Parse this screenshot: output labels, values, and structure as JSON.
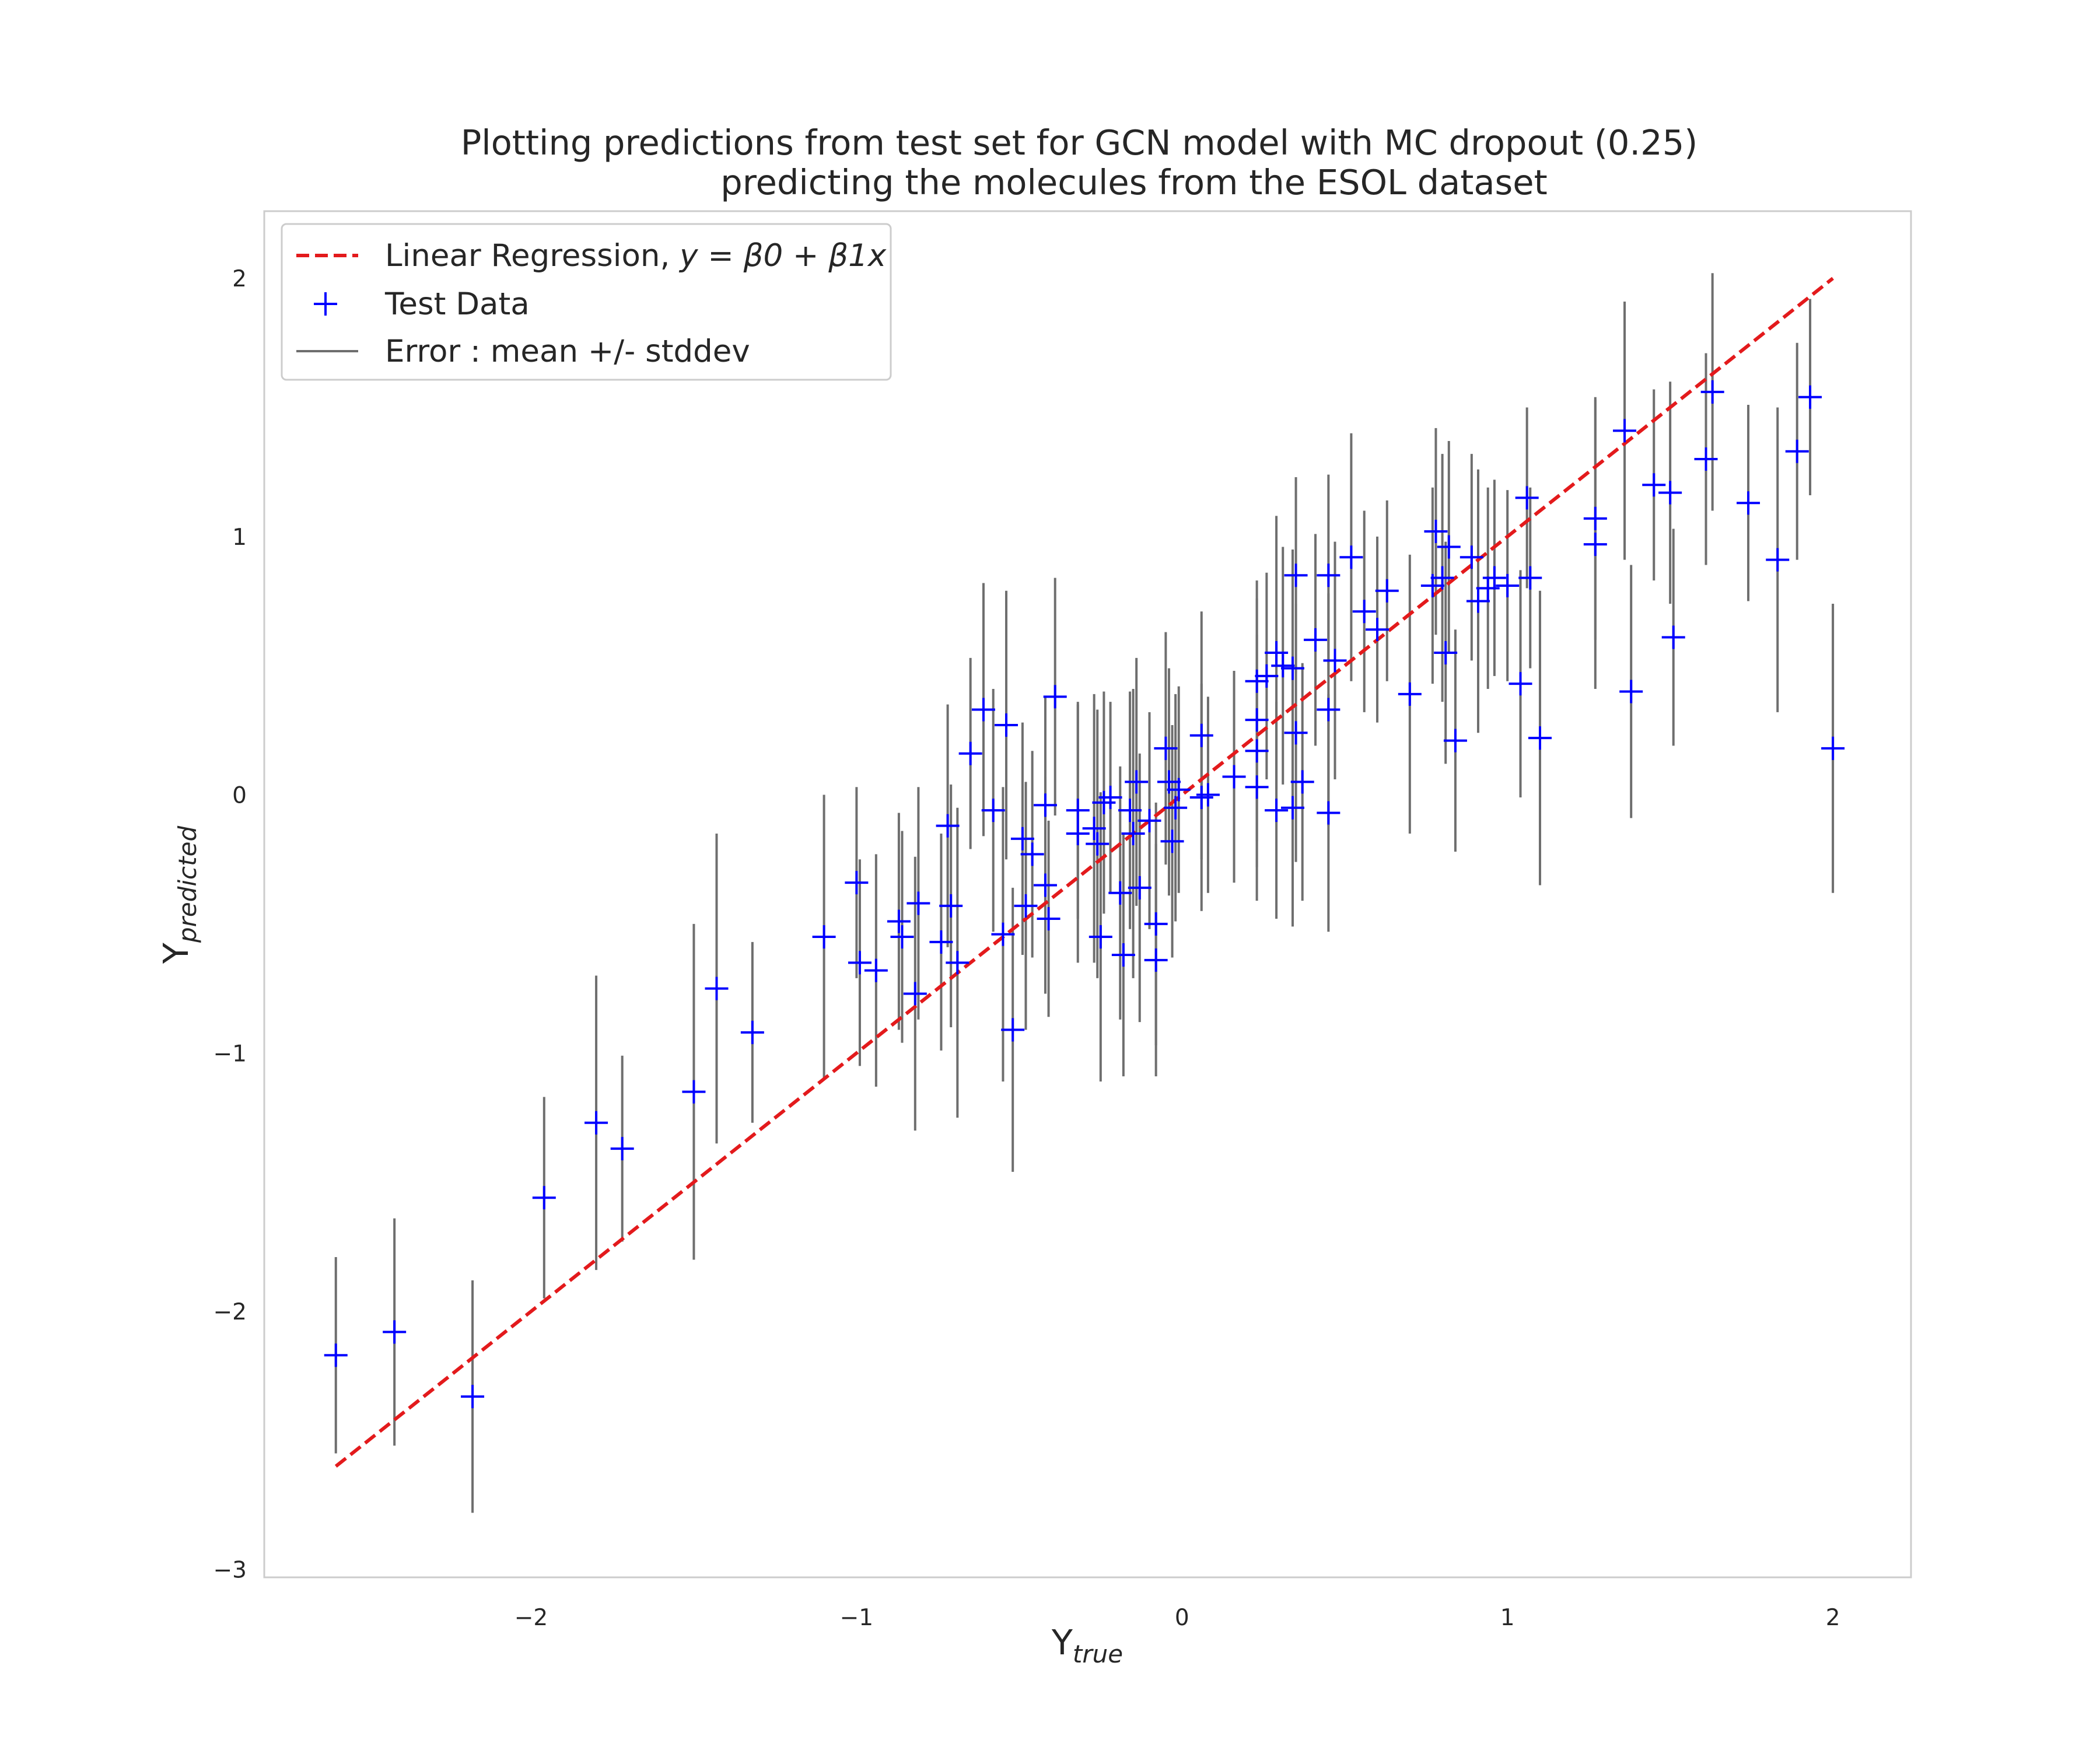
{
  "chart_data": {
    "type": "scatter",
    "title": "Plotting predictions from test set for GCN model with MC dropout (0.25)",
    "subtitle": "predicting the molecules from the ESOL dataset",
    "xlabel": {
      "main": "Y",
      "sub": "true"
    },
    "ylabel": {
      "main": "Y",
      "sub": "predicted"
    },
    "xlim": [
      -2.82,
      2.24
    ],
    "ylim": [
      -3.03,
      2.26
    ],
    "x_ticks": [
      -2,
      -1,
      0,
      1,
      2
    ],
    "y_ticks": [
      -3,
      -2,
      -1,
      0,
      1,
      2
    ],
    "x_tick_labels": [
      "−2",
      "−1",
      "0",
      "1",
      "2"
    ],
    "y_tick_labels": [
      "−3",
      "−2",
      "−1",
      "0",
      "1",
      "2"
    ],
    "grid": false,
    "legend_position": "upper-left",
    "colors": {
      "regression": "#e31a1c",
      "points": "#0000ff",
      "errorbars": "#6e6e6e",
      "frame": "#cccccc"
    },
    "legend": [
      {
        "kind": "dashed-line",
        "label": "Linear Regression, ",
        "math": "y = β0 + β1x"
      },
      {
        "kind": "marker",
        "label": "Test Data"
      },
      {
        "kind": "errorbar",
        "label": "Error : mean +/- stddev"
      }
    ],
    "regression_line": {
      "x": [
        -2.6,
        2.0
      ],
      "y": [
        -2.6,
        2.0
      ]
    },
    "series": [
      {
        "name": "Test Data",
        "points": [
          [
            -2.6,
            -2.17,
            0.38
          ],
          [
            -2.42,
            -2.08,
            0.44
          ],
          [
            -2.18,
            -2.33,
            0.45
          ],
          [
            -1.96,
            -1.56,
            0.39
          ],
          [
            -1.8,
            -1.27,
            0.57
          ],
          [
            -1.72,
            -1.37,
            0.36
          ],
          [
            -1.5,
            -1.15,
            0.65
          ],
          [
            -1.43,
            -0.75,
            0.6
          ],
          [
            -1.32,
            -0.92,
            0.35
          ],
          [
            -1.1,
            -0.55,
            0.55
          ],
          [
            -1.0,
            -0.34,
            0.37
          ],
          [
            -0.99,
            -0.65,
            0.4
          ],
          [
            -0.94,
            -0.68,
            0.45
          ],
          [
            -0.87,
            -0.49,
            0.42
          ],
          [
            -0.86,
            -0.55,
            0.41
          ],
          [
            -0.82,
            -0.77,
            0.53
          ],
          [
            -0.81,
            -0.42,
            0.45
          ],
          [
            -0.74,
            -0.57,
            0.42
          ],
          [
            -0.72,
            -0.12,
            0.47
          ],
          [
            -0.71,
            -0.43,
            0.47
          ],
          [
            -0.69,
            -0.65,
            0.6
          ],
          [
            -0.65,
            0.16,
            0.37
          ],
          [
            -0.61,
            0.33,
            0.49
          ],
          [
            -0.58,
            -0.06,
            0.47
          ],
          [
            -0.55,
            -0.54,
            0.57
          ],
          [
            -0.54,
            0.27,
            0.52
          ],
          [
            -0.52,
            -0.91,
            0.55
          ],
          [
            -0.49,
            -0.17,
            0.45
          ],
          [
            -0.48,
            -0.43,
            0.48
          ],
          [
            -0.46,
            -0.23,
            0.4
          ],
          [
            -0.42,
            -0.35,
            0.42
          ],
          [
            -0.42,
            -0.04,
            0.42
          ],
          [
            -0.41,
            -0.48,
            0.38
          ],
          [
            -0.39,
            0.38,
            0.46
          ],
          [
            -0.32,
            -0.06,
            0.42
          ],
          [
            -0.32,
            -0.15,
            0.5
          ],
          [
            -0.27,
            -0.13,
            0.52
          ],
          [
            -0.26,
            -0.19,
            0.52
          ],
          [
            -0.25,
            -0.55,
            0.56
          ],
          [
            -0.24,
            -0.03,
            0.43
          ],
          [
            -0.22,
            -0.01,
            0.37
          ],
          [
            -0.19,
            -0.38,
            0.49
          ],
          [
            -0.18,
            -0.62,
            0.47
          ],
          [
            -0.16,
            -0.06,
            0.46
          ],
          [
            -0.15,
            -0.15,
            0.56
          ],
          [
            -0.14,
            0.05,
            0.48
          ],
          [
            -0.13,
            -0.36,
            0.52
          ],
          [
            -0.1,
            -0.1,
            0.42
          ],
          [
            -0.08,
            -0.5,
            0.47
          ],
          [
            -0.08,
            -0.64,
            0.45
          ],
          [
            -0.05,
            0.18,
            0.45
          ],
          [
            -0.04,
            0.05,
            0.44
          ],
          [
            -0.03,
            -0.18,
            0.45
          ],
          [
            -0.02,
            -0.05,
            0.44
          ],
          [
            -0.01,
            0.02,
            0.4
          ],
          [
            0.06,
            0.23,
            0.48
          ],
          [
            0.06,
            -0.01,
            0.44
          ],
          [
            0.08,
            0.0,
            0.38
          ],
          [
            0.16,
            0.07,
            0.41
          ],
          [
            0.23,
            0.17,
            0.45
          ],
          [
            0.23,
            0.03,
            0.44
          ],
          [
            0.23,
            0.44,
            0.39
          ],
          [
            0.23,
            0.29,
            0.47
          ],
          [
            0.26,
            0.46,
            0.4
          ],
          [
            0.29,
            0.55,
            0.53
          ],
          [
            0.29,
            -0.06,
            0.42
          ],
          [
            0.31,
            0.5,
            0.46
          ],
          [
            0.34,
            0.49,
            0.46
          ],
          [
            0.34,
            -0.05,
            0.46
          ],
          [
            0.35,
            0.24,
            0.5
          ],
          [
            0.35,
            0.85,
            0.38
          ],
          [
            0.37,
            0.05,
            0.46
          ],
          [
            0.41,
            0.6,
            0.41
          ],
          [
            0.45,
            0.33,
            0.45
          ],
          [
            0.45,
            -0.07,
            0.46
          ],
          [
            0.45,
            0.85,
            0.39
          ],
          [
            0.47,
            0.52,
            0.46
          ],
          [
            0.52,
            0.92,
            0.48
          ],
          [
            0.56,
            0.71,
            0.39
          ],
          [
            0.6,
            0.64,
            0.36
          ],
          [
            0.63,
            0.79,
            0.35
          ],
          [
            0.7,
            0.39,
            0.54
          ],
          [
            0.77,
            0.81,
            0.38
          ],
          [
            0.78,
            1.02,
            0.4
          ],
          [
            0.8,
            0.84,
            0.48
          ],
          [
            0.81,
            0.55,
            0.43
          ],
          [
            0.82,
            0.96,
            0.41
          ],
          [
            0.84,
            0.21,
            0.43
          ],
          [
            0.89,
            0.92,
            0.4
          ],
          [
            0.91,
            0.75,
            0.51
          ],
          [
            0.94,
            0.8,
            0.39
          ],
          [
            0.96,
            0.84,
            0.38
          ],
          [
            1.0,
            0.81,
            0.37
          ],
          [
            1.04,
            0.43,
            0.44
          ],
          [
            1.06,
            1.15,
            0.35
          ],
          [
            1.07,
            0.84,
            0.35
          ],
          [
            1.1,
            0.22,
            0.57
          ],
          [
            1.27,
            1.07,
            0.47
          ],
          [
            1.27,
            0.97,
            0.56
          ],
          [
            1.36,
            1.41,
            0.5
          ],
          [
            1.38,
            0.4,
            0.49
          ],
          [
            1.45,
            1.2,
            0.37
          ],
          [
            1.5,
            1.17,
            0.43
          ],
          [
            1.51,
            0.61,
            0.42
          ],
          [
            1.61,
            1.3,
            0.41
          ],
          [
            1.63,
            1.56,
            0.46
          ],
          [
            1.74,
            1.13,
            0.38
          ],
          [
            1.83,
            0.91,
            0.59
          ],
          [
            1.89,
            1.33,
            0.42
          ],
          [
            1.93,
            1.54,
            0.38
          ],
          [
            2.0,
            0.18,
            0.56
          ]
        ]
      }
    ]
  }
}
